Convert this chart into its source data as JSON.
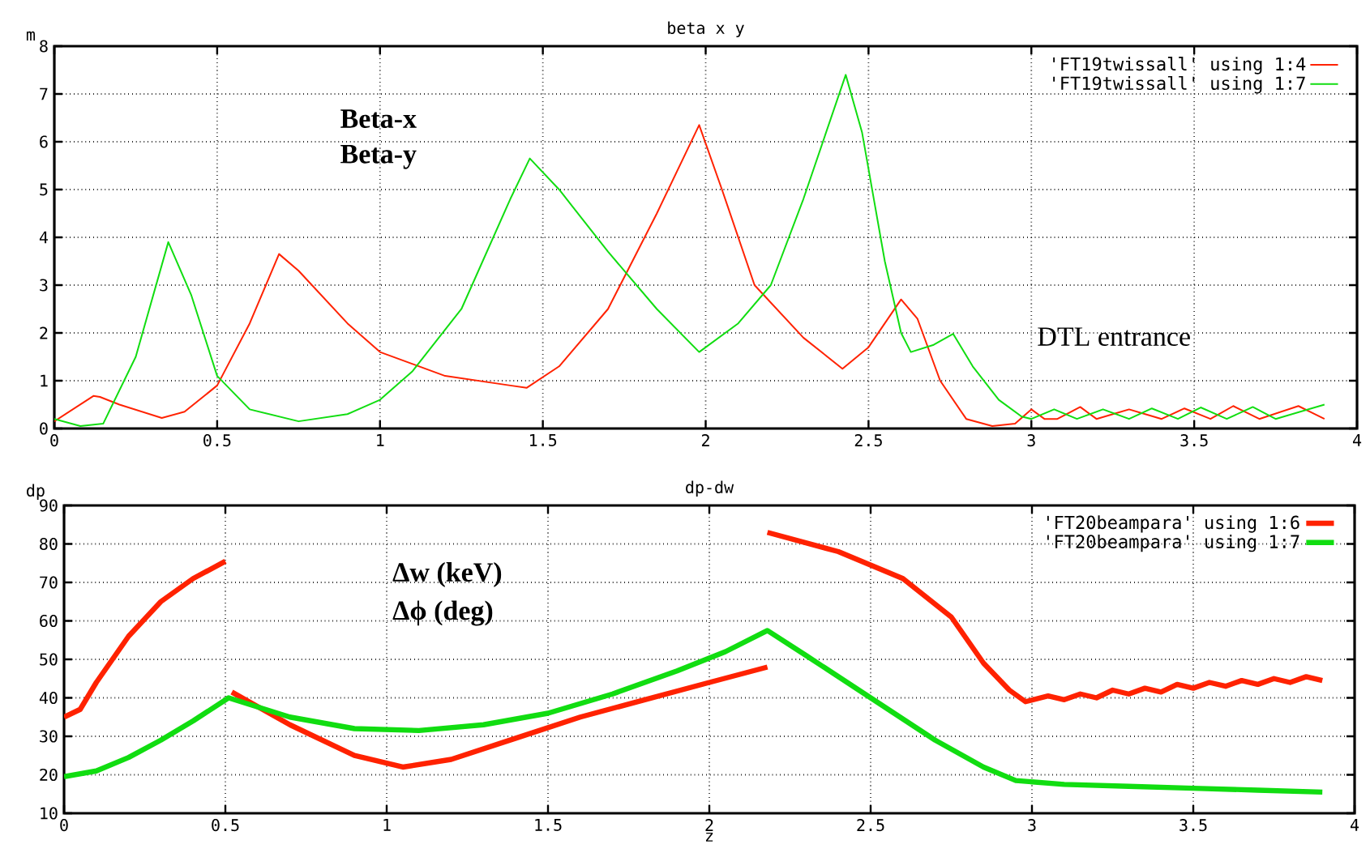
{
  "chart_data": [
    {
      "type": "line",
      "title": "beta x y",
      "ylabel": "m",
      "xlim": [
        0,
        4
      ],
      "xticks": [
        0,
        0.5,
        1,
        1.5,
        2,
        2.5,
        3,
        3.5,
        4
      ],
      "ylim": [
        0,
        8
      ],
      "yticks": [
        0,
        1,
        2,
        3,
        4,
        5,
        6,
        7,
        8
      ],
      "grid": true,
      "legend": "top right",
      "annotations": [
        "Beta-x",
        "Beta-y",
        "DTL entrance"
      ],
      "series": [
        {
          "name": "'FT19twissall' using 1:4",
          "color": "#ff2200",
          "x": [
            0,
            0.12,
            0.14,
            0.2,
            0.33,
            0.4,
            0.5,
            0.6,
            0.69,
            0.75,
            0.9,
            1.0,
            1.2,
            1.4,
            1.45,
            1.55,
            1.7,
            1.85,
            1.98,
            2.05,
            2.15,
            2.3,
            2.42,
            2.5,
            2.6,
            2.65,
            2.72,
            2.8,
            2.88,
            2.95,
            3.0,
            3.04,
            3.08,
            3.15,
            3.2,
            3.3,
            3.4,
            3.47,
            3.55,
            3.62,
            3.7,
            3.82,
            3.9
          ],
          "values": [
            0.15,
            0.68,
            0.66,
            0.5,
            0.22,
            0.35,
            0.9,
            2.2,
            3.65,
            3.3,
            2.2,
            1.6,
            1.1,
            0.9,
            0.85,
            1.3,
            2.5,
            4.5,
            6.35,
            5.0,
            3.0,
            1.9,
            1.25,
            1.7,
            2.7,
            2.3,
            1.0,
            0.2,
            0.05,
            0.1,
            0.4,
            0.2,
            0.2,
            0.45,
            0.2,
            0.4,
            0.2,
            0.42,
            0.2,
            0.47,
            0.2,
            0.47,
            0.2
          ]
        },
        {
          "name": "'FT19twissall' using 1:7",
          "color": "#11dd11",
          "x": [
            0,
            0.08,
            0.15,
            0.25,
            0.35,
            0.42,
            0.5,
            0.6,
            0.75,
            0.9,
            1.0,
            1.1,
            1.25,
            1.4,
            1.46,
            1.55,
            1.7,
            1.85,
            1.98,
            2.1,
            2.2,
            2.3,
            2.43,
            2.48,
            2.55,
            2.6,
            2.63,
            2.7,
            2.76,
            2.82,
            2.9,
            2.97,
            3.0,
            3.07,
            3.14,
            3.22,
            3.3,
            3.37,
            3.45,
            3.52,
            3.6,
            3.68,
            3.75,
            3.9
          ],
          "values": [
            0.2,
            0.05,
            0.1,
            1.5,
            3.9,
            2.8,
            1.1,
            0.4,
            0.15,
            0.3,
            0.6,
            1.2,
            2.5,
            4.8,
            5.65,
            5.0,
            3.7,
            2.5,
            1.6,
            2.2,
            3.0,
            4.8,
            7.4,
            6.2,
            3.5,
            2.0,
            1.6,
            1.75,
            1.98,
            1.3,
            0.6,
            0.25,
            0.2,
            0.4,
            0.2,
            0.4,
            0.2,
            0.42,
            0.2,
            0.44,
            0.2,
            0.45,
            0.2,
            0.5
          ]
        }
      ]
    },
    {
      "type": "line",
      "title": "dp-dw",
      "ylabel": "dp",
      "xlabel": "z",
      "xlim": [
        0,
        4
      ],
      "xticks": [
        0,
        0.5,
        1,
        1.5,
        2,
        2.5,
        3,
        3.5,
        4
      ],
      "ylim": [
        10,
        90
      ],
      "yticks": [
        10,
        20,
        30,
        40,
        50,
        60,
        70,
        80,
        90
      ],
      "grid": true,
      "legend": "top right",
      "annotations": [
        "Δw (keV)",
        "Δϕ (deg)"
      ],
      "series": [
        {
          "name": "'FT20beampara' using 1:6",
          "color": "#ff2200",
          "x": [
            0,
            0.05,
            0.1,
            0.2,
            0.3,
            0.4,
            0.5,
            0.51,
            0.52,
            0.7,
            0.9,
            1.05,
            1.2,
            1.4,
            1.6,
            1.8,
            2.0,
            2.18,
            2.18,
            2.4,
            2.6,
            2.75,
            2.85,
            2.93,
            2.98,
            3.05,
            3.1,
            3.15,
            3.2,
            3.25,
            3.3,
            3.35,
            3.4,
            3.45,
            3.5,
            3.55,
            3.6,
            3.65,
            3.7,
            3.75,
            3.8,
            3.85,
            3.9
          ],
          "values": [
            35,
            37,
            44,
            56,
            65,
            71,
            75.5,
            null,
            41.5,
            33,
            25,
            22,
            24,
            29.5,
            35,
            39.5,
            44,
            48,
            83,
            78,
            71,
            61,
            49,
            42,
            39,
            40.5,
            39.5,
            41,
            40,
            42,
            41,
            42.5,
            41.5,
            43.5,
            42.5,
            44,
            43,
            44.5,
            43.5,
            45,
            44,
            45.5,
            44.5
          ]
        },
        {
          "name": "'FT20beampara' using 1:7",
          "color": "#11dd11",
          "x": [
            0,
            0.1,
            0.2,
            0.3,
            0.4,
            0.51,
            0.7,
            0.9,
            1.1,
            1.3,
            1.5,
            1.7,
            1.9,
            2.05,
            2.18,
            2.3,
            2.5,
            2.7,
            2.85,
            2.95,
            3.1,
            3.3,
            3.5,
            3.7,
            3.9
          ],
          "values": [
            19.5,
            21,
            24.5,
            29,
            34,
            40,
            35,
            32,
            31.5,
            33,
            36,
            41,
            47,
            52,
            57.5,
            51,
            40,
            29,
            22,
            18.5,
            17.5,
            17,
            16.5,
            16,
            15.5
          ]
        }
      ]
    }
  ]
}
